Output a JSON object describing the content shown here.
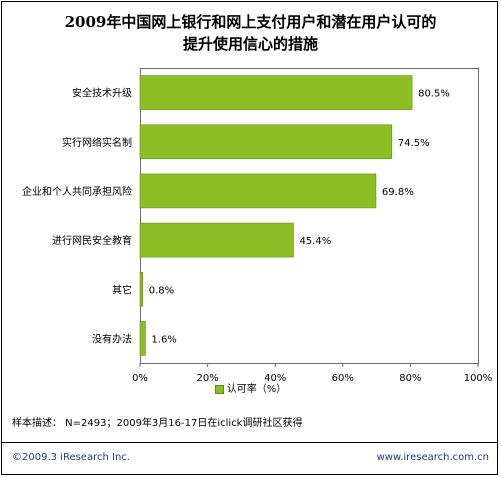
{
  "chart_data": {
    "type": "bar",
    "orientation": "horizontal",
    "title_line1": "2009年中国网上银行和网上支付用户和潜在用户认可的",
    "title_line2": "提升使用信心的措施",
    "categories": [
      "安全技术升级",
      "实行网络实名制",
      "企业和个人共同承担风险",
      "进行网民安全教育",
      "其它",
      "没有办法"
    ],
    "series": [
      {
        "name": "认可率（%）",
        "values": [
          80.5,
          74.5,
          69.8,
          45.4,
          0.8,
          1.6
        ],
        "color": "#8cbf26"
      }
    ],
    "value_labels": [
      "80.5%",
      "74.5%",
      "69.8%",
      "45.4%",
      "0.8%",
      "1.6%"
    ],
    "xlim": [
      0,
      100
    ],
    "x_ticks": [
      "0%",
      "20%",
      "40%",
      "60%",
      "80%",
      "100%"
    ],
    "grid": false,
    "legend_position": "bottom"
  },
  "note": "样本描述：  N=2493；2009年3月16-17日在iclick调研社区获得",
  "footer": {
    "copyright": "©2009.3  iResearch Inc.",
    "website": "www.iresearch.com.cn"
  }
}
